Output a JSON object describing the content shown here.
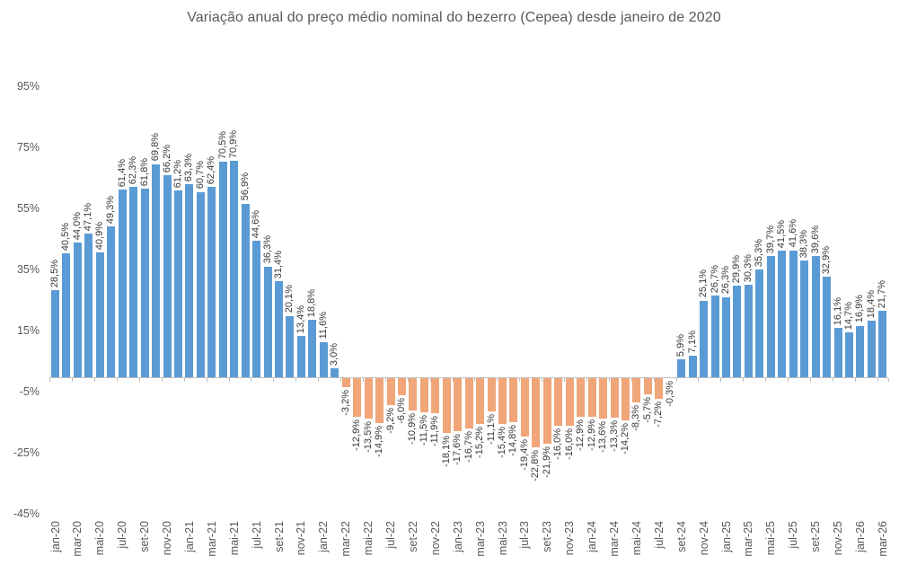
{
  "title": "Variação anual do preço médio nominal do bezerro (Cepea) desde janeiro de 2020",
  "chart_data": {
    "type": "bar",
    "title": "Variação anual do preço médio nominal do bezerro (Cepea) desde janeiro de 2020",
    "categories": [
      "jan-20",
      "fev-20",
      "mar-20",
      "abr-20",
      "mai-20",
      "jun-20",
      "jul-20",
      "ago-20",
      "set-20",
      "out-20",
      "nov-20",
      "dez-20",
      "jan-21",
      "fev-21",
      "mar-21",
      "abr-21",
      "mai-21",
      "jun-21",
      "jul-21",
      "ago-21",
      "set-21",
      "out-21",
      "nov-21",
      "dez-21",
      "jan-22",
      "fev-22",
      "mar-22",
      "abr-22",
      "mai-22",
      "jun-22",
      "jul-22",
      "ago-22",
      "set-22",
      "out-22",
      "nov-22",
      "dez-22",
      "jan-23",
      "fev-23",
      "mar-23",
      "abr-23",
      "mai-23",
      "jun-23",
      "jul-23",
      "ago-23",
      "set-23",
      "out-23",
      "nov-23",
      "dez-23",
      "jan-24",
      "fev-24",
      "mar-24",
      "abr-24",
      "mai-24",
      "jun-24",
      "jul-24",
      "ago-24",
      "set-24",
      "out-24",
      "nov-24",
      "dez-24",
      "jan-25",
      "fev-25",
      "mar-25",
      "abr-25",
      "mai-25",
      "jun-25",
      "jul-25",
      "ago-25",
      "set-25",
      "out-25",
      "nov-25",
      "dez-25",
      "jan-26",
      "fev-26",
      "mar-26"
    ],
    "values": [
      28.5,
      40.5,
      44.0,
      47.1,
      40.9,
      49.3,
      61.4,
      62.3,
      61.8,
      69.8,
      66.2,
      61.2,
      63.3,
      60.7,
      62.4,
      70.5,
      70.9,
      56.9,
      44.6,
      36.3,
      31.4,
      20.1,
      13.4,
      18.8,
      11.6,
      3.0,
      -3.2,
      -12.9,
      -13.5,
      -14.9,
      -9.2,
      -6.0,
      -10.9,
      -11.5,
      -11.9,
      -18.1,
      -17.6,
      -16.7,
      -15.2,
      -11.1,
      -15.4,
      -14.8,
      -19.4,
      -22.8,
      -21.9,
      -16.0,
      -16.0,
      -12.9,
      -12.9,
      -13.6,
      -13.3,
      -14.2,
      -8.3,
      -5.7,
      -7.2,
      -0.3,
      5.9,
      7.1,
      25.1,
      26.7,
      26.3,
      29.9,
      30.3,
      35.3,
      39.7,
      41.5,
      41.6,
      38.3,
      39.6,
      32.9,
      16.1,
      14.7,
      16.9,
      18.4,
      21.7
    ],
    "bar_labels": [
      "28,5%",
      "40,5%",
      "44,0%",
      "47,1%",
      "40,9%",
      "49,3%",
      "61,4%",
      "62,3%",
      "61,8%",
      "69,8%",
      "66,2%",
      "61,2%",
      "63,3%",
      "60,7%",
      "62,4%",
      "70,5%",
      "70,9%",
      "56,9%",
      "44,6%",
      "36,3%",
      "31,4%",
      "20,1%",
      "13,4%",
      "18,8%",
      "11,6%",
      "3,0%",
      "-3,2%",
      "-12,9%",
      "-13,5%",
      "-14,9%",
      "-9,2%",
      "-6,0%",
      "-10,9%",
      "-11,5%",
      "-11,9%",
      "-18,1%",
      "-17,6%",
      "-16,7%",
      "-15,2%",
      "-11,1%",
      "-15,4%",
      "-14,8%",
      "-19,4%",
      "-22,8%",
      "-21,9%",
      "-16,0%",
      "-16,0%",
      "-12,9%",
      "-12,9%",
      "-13,6%",
      "-13,3%",
      "-14,2%",
      "-8,3%",
      "-5,7%",
      "-7,2%",
      "-0,3%",
      "5,9%",
      "7,1%",
      "25,1%",
      "26,7%",
      "26,3%",
      "29,9%",
      "30,3%",
      "35,3%",
      "39,7%",
      "41,5%",
      "41,6%",
      "38,3%",
      "39,6%",
      "32,9%",
      "16,1%",
      "14,7%",
      "16,9%",
      "18,4%",
      "21,7%"
    ],
    "x_tick_labels": [
      "jan-20",
      "mar-20",
      "mai-20",
      "jul-20",
      "set-20",
      "nov-20",
      "jan-21",
      "mar-21",
      "mai-21",
      "jul-21",
      "set-21",
      "nov-21",
      "jan-22",
      "mar-22",
      "mai-22",
      "jul-22",
      "set-22",
      "nov-22",
      "jan-23",
      "mar-23",
      "mai-23",
      "jul-23",
      "set-23",
      "nov-23",
      "jan-24",
      "mar-24",
      "mai-24",
      "jul-24",
      "set-24",
      "nov-24",
      "jan-25",
      "mar-25",
      "mai-25",
      "jul-25",
      "set-25",
      "nov-25",
      "jan-26",
      "mar-26"
    ],
    "x_tick_interval": 2,
    "y_tick_labels": [
      "95%",
      "75%",
      "55%",
      "35%",
      "15%",
      "-5%",
      "-25%",
      "-45%"
    ],
    "y_tick_values": [
      95,
      75,
      55,
      35,
      15,
      -5,
      -25,
      -45
    ],
    "ylim": [
      -45,
      95
    ],
    "grid": false,
    "legend": "none",
    "colors": {
      "positive": "#5B9BD5",
      "negative": "#F0A678",
      "title_text": "#595959",
      "axis_text": "#595959",
      "bar_label_text": "#3A3A3A",
      "axis_line": "#BFBFBF",
      "background": "#FFFFFF"
    }
  }
}
